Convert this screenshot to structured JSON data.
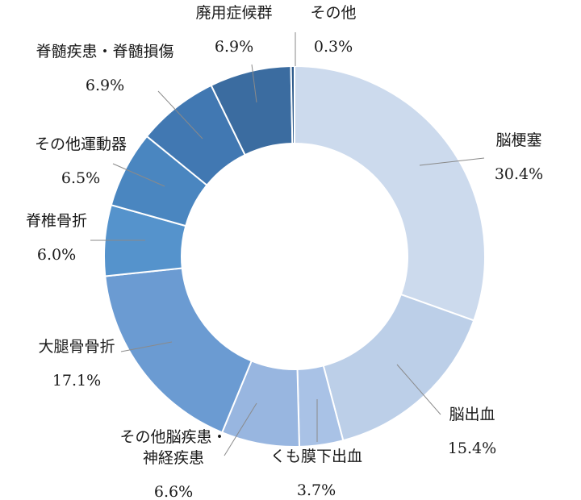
{
  "chart_data": {
    "type": "pie",
    "variant": "donut",
    "title": "",
    "slices": [
      {
        "name": "脳梗塞",
        "value": 30.4,
        "label": "30.4%",
        "color": "#ccdaed"
      },
      {
        "name": "脳出血",
        "value": 15.4,
        "label": "15.4%",
        "color": "#bccfe8"
      },
      {
        "name": "くも膜下出血",
        "value": 3.7,
        "label": "3.7%",
        "color": "#a9c2e6"
      },
      {
        "name": "その他脳疾患・神経疾患",
        "label_lines": [
          "その他脳疾患・",
          "神経疾患"
        ],
        "value": 6.6,
        "label": "6.6%",
        "color": "#98b6e0"
      },
      {
        "name": "大腿骨骨折",
        "value": 17.1,
        "label": "17.1%",
        "color": "#6b9bd2"
      },
      {
        "name": "脊椎骨折",
        "value": 6.0,
        "label": "6.0%",
        "color": "#5593cc"
      },
      {
        "name": "その他運動器",
        "value": 6.5,
        "label": "6.5%",
        "color": "#4a86c0"
      },
      {
        "name": "脊髄疾患・脊髄損傷",
        "value": 6.9,
        "label": "6.9%",
        "color": "#4178b2"
      },
      {
        "name": "廃用症候群",
        "value": 6.9,
        "label": "6.9%",
        "color": "#3b6ca0"
      },
      {
        "name": "その他",
        "value": 0.3,
        "label": "0.3%",
        "color": "#2f5c8c"
      }
    ],
    "start_angle_deg": 0,
    "direction": "clockwise",
    "legend": "none",
    "labels": "outside with leader lines"
  }
}
